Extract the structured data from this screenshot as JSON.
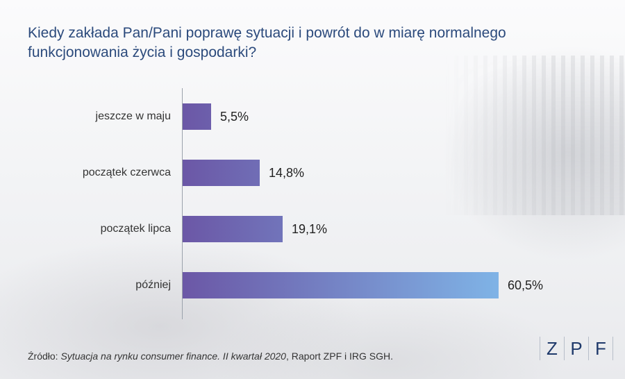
{
  "title": "Kiedy zakłada Pan/Pani poprawę sytuacji i powrót do w miarę normalnego funkcjonowania życia i gospodarki?",
  "source": {
    "prefix": "Źródło: ",
    "italic": "Sytuacja na rynku consumer finance. II kwartał 2020",
    "suffix": ", Raport ZPF i IRG SGH."
  },
  "logo": [
    "Z",
    "P",
    "F"
  ],
  "colors": {
    "bar_start": "#6b57a6",
    "bar_end": "#7fb3e6",
    "title": "#2b4a7c"
  },
  "chart_data": {
    "type": "bar",
    "orientation": "horizontal",
    "title": "Kiedy zakłada Pan/Pani poprawę sytuacji i powrót do w miarę normalnego funkcjonowania życia i gospodarki?",
    "categories": [
      "jeszcze w maju",
      "początek czerwca",
      "początek lipca",
      "później"
    ],
    "values": [
      5.5,
      14.8,
      19.1,
      60.5
    ],
    "value_labels": [
      "5,5%",
      "14,8%",
      "19,1%",
      "60,5%"
    ],
    "xlim": [
      0,
      60.5
    ],
    "grid": false,
    "legend": "none"
  }
}
